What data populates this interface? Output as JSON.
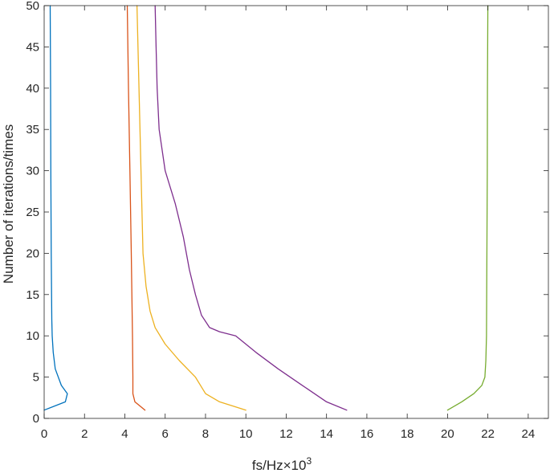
{
  "chart_data": {
    "type": "line",
    "title": "",
    "xlabel": "fs/Hz×10",
    "xlabel_superscript": "3",
    "ylabel": "Number of iterations/times",
    "xlim": [
      0,
      25
    ],
    "ylim": [
      0,
      50
    ],
    "xticks": [
      "0",
      "2",
      "4",
      "6",
      "8",
      "10",
      "12",
      "14",
      "16",
      "18",
      "20",
      "22",
      "24"
    ],
    "yticks": [
      "0",
      "5",
      "10",
      "15",
      "20",
      "25",
      "30",
      "35",
      "40",
      "45",
      "50"
    ],
    "grid": false,
    "legend": "none",
    "series": [
      {
        "color": "#0072BD",
        "points": [
          [
            0,
            1
          ],
          [
            1.05,
            2
          ],
          [
            1.15,
            3
          ],
          [
            0.85,
            4
          ],
          [
            0.55,
            6
          ],
          [
            0.45,
            8
          ],
          [
            0.4,
            10
          ],
          [
            0.38,
            12
          ],
          [
            0.35,
            20
          ],
          [
            0.33,
            30
          ],
          [
            0.32,
            40
          ],
          [
            0.3,
            50
          ]
        ]
      },
      {
        "color": "#D95319",
        "points": [
          [
            5.0,
            1
          ],
          [
            4.5,
            2
          ],
          [
            4.4,
            3
          ],
          [
            4.4,
            5
          ],
          [
            4.38,
            10
          ],
          [
            4.32,
            20
          ],
          [
            4.25,
            30
          ],
          [
            4.18,
            40
          ],
          [
            4.12,
            50
          ]
        ]
      },
      {
        "color": "#EDB120",
        "points": [
          [
            10.0,
            1
          ],
          [
            8.7,
            2
          ],
          [
            8.0,
            3
          ],
          [
            7.5,
            5
          ],
          [
            6.7,
            7
          ],
          [
            6.0,
            9
          ],
          [
            5.5,
            11
          ],
          [
            5.25,
            13
          ],
          [
            5.05,
            16
          ],
          [
            4.9,
            20
          ],
          [
            4.8,
            30
          ],
          [
            4.7,
            40
          ],
          [
            4.6,
            50
          ]
        ]
      },
      {
        "color": "#7E2F8E",
        "points": [
          [
            15.0,
            1
          ],
          [
            14.0,
            2
          ],
          [
            12.8,
            4
          ],
          [
            11.6,
            6
          ],
          [
            10.5,
            8
          ],
          [
            9.5,
            10
          ],
          [
            8.7,
            10.5
          ],
          [
            8.2,
            11
          ],
          [
            7.8,
            12.5
          ],
          [
            7.5,
            15
          ],
          [
            7.2,
            18
          ],
          [
            6.9,
            22
          ],
          [
            6.5,
            26
          ],
          [
            6.0,
            30
          ],
          [
            5.7,
            35
          ],
          [
            5.6,
            40
          ],
          [
            5.55,
            45
          ],
          [
            5.5,
            50
          ]
        ]
      },
      {
        "color": "#77AC30",
        "points": [
          [
            20.0,
            1
          ],
          [
            20.7,
            2
          ],
          [
            21.3,
            3
          ],
          [
            21.7,
            4
          ],
          [
            21.85,
            5
          ],
          [
            21.9,
            7
          ],
          [
            21.93,
            10
          ],
          [
            21.95,
            20
          ],
          [
            21.97,
            30
          ],
          [
            21.98,
            40
          ],
          [
            22.0,
            50
          ]
        ]
      }
    ]
  }
}
